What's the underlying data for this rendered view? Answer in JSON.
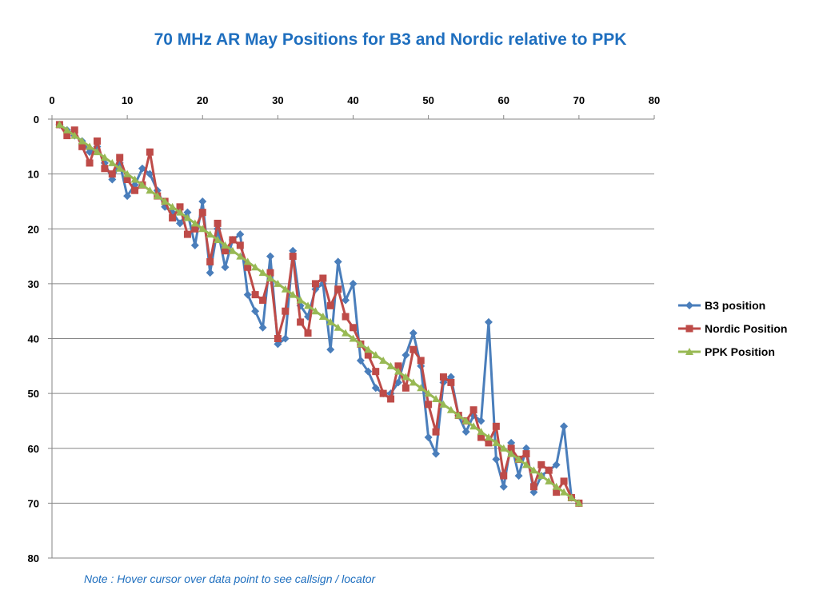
{
  "title": "70 MHz AR May Positions for B3 and Nordic relative to PPK",
  "note": "Note : Hover cursor over data point to see callsign / locator",
  "chart_data": {
    "type": "line",
    "title": "70 MHz AR May Positions for B3 and Nordic relative to PPK",
    "xlim": [
      0,
      80
    ],
    "ylim": [
      0,
      80
    ],
    "y_inverted": true,
    "x_axis_position": "top",
    "x_ticks": [
      0,
      10,
      20,
      30,
      40,
      50,
      60,
      70,
      80
    ],
    "y_ticks": [
      0,
      10,
      20,
      30,
      40,
      50,
      60,
      70,
      80
    ],
    "grid": "horizontal",
    "legend_position": "right",
    "x": [
      1,
      2,
      3,
      4,
      5,
      6,
      7,
      8,
      9,
      10,
      11,
      12,
      13,
      14,
      15,
      16,
      17,
      18,
      19,
      20,
      21,
      22,
      23,
      24,
      25,
      26,
      27,
      28,
      29,
      30,
      31,
      32,
      33,
      34,
      35,
      36,
      37,
      38,
      39,
      40,
      41,
      42,
      43,
      44,
      45,
      46,
      47,
      48,
      49,
      50,
      51,
      52,
      53,
      54,
      55,
      56,
      57,
      58,
      59,
      60,
      61,
      62,
      63,
      64,
      65,
      66,
      67,
      68,
      69,
      70
    ],
    "series": [
      {
        "name": "B3 position",
        "color": "#4a7ebb",
        "marker": "diamond",
        "values": [
          1,
          2,
          3,
          4,
          6,
          5,
          8,
          11,
          8,
          14,
          12,
          9,
          10,
          13,
          16,
          17,
          19,
          17,
          23,
          15,
          28,
          20,
          27,
          22,
          21,
          32,
          35,
          38,
          25,
          41,
          40,
          24,
          34,
          36,
          31,
          30,
          42,
          26,
          33,
          30,
          44,
          46,
          49,
          50,
          50,
          48,
          43,
          39,
          45,
          58,
          61,
          48,
          47,
          54,
          57,
          54,
          55,
          37,
          62,
          67,
          59,
          65,
          60,
          68,
          65,
          64,
          63,
          56,
          69,
          70
        ]
      },
      {
        "name": "Nordic Position",
        "color": "#be4b48",
        "marker": "square",
        "values": [
          1,
          3,
          2,
          5,
          8,
          4,
          9,
          10,
          7,
          11,
          13,
          12,
          6,
          14,
          15,
          18,
          16,
          21,
          20,
          17,
          26,
          19,
          24,
          22,
          23,
          27,
          32,
          33,
          28,
          40,
          35,
          25,
          37,
          39,
          30,
          29,
          34,
          31,
          36,
          38,
          41,
          43,
          46,
          50,
          51,
          45,
          49,
          42,
          44,
          52,
          57,
          47,
          48,
          54,
          55,
          53,
          58,
          59,
          56,
          65,
          60,
          62,
          61,
          67,
          63,
          64,
          68,
          66,
          69,
          70
        ]
      },
      {
        "name": "PPK Position",
        "color": "#98b954",
        "marker": "triangle",
        "values": [
          1,
          2,
          3,
          4,
          5,
          6,
          7,
          8,
          9,
          10,
          11,
          12,
          13,
          14,
          15,
          16,
          17,
          18,
          19,
          20,
          21,
          22,
          23,
          24,
          25,
          26,
          27,
          28,
          29,
          30,
          31,
          32,
          33,
          34,
          35,
          36,
          37,
          38,
          39,
          40,
          41,
          42,
          43,
          44,
          45,
          46,
          47,
          48,
          49,
          50,
          51,
          52,
          53,
          54,
          55,
          56,
          57,
          58,
          59,
          60,
          61,
          62,
          63,
          64,
          65,
          66,
          67,
          68,
          69,
          70
        ]
      }
    ]
  }
}
